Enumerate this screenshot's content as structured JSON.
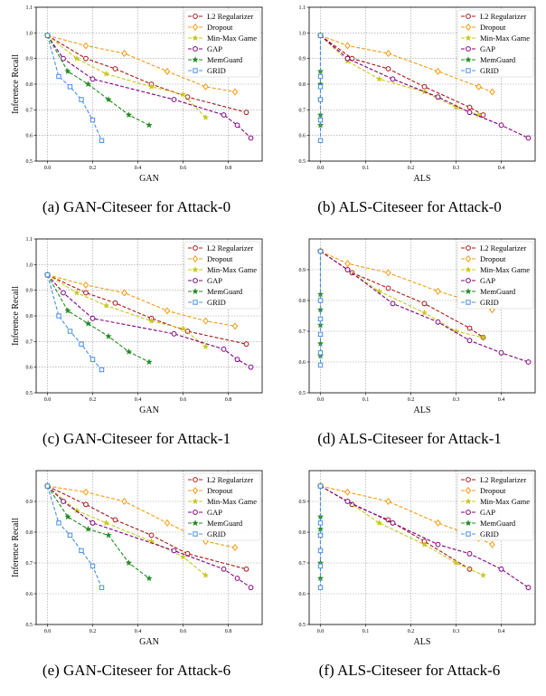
{
  "legend_labels": [
    "L2 Regularizer",
    "Dropout",
    "Min-Max Game",
    "GAP",
    "MemGuard",
    "GRID"
  ],
  "series_colors": [
    "#a81818",
    "#f39c12",
    "#c8c81e",
    "#800080",
    "#228B22",
    "#4a90e2"
  ],
  "series_markers": [
    "circle",
    "diamond",
    "star",
    "circle",
    "star",
    "square"
  ],
  "chart_data": [
    {
      "type": "line",
      "caption": "(a) GAN-Citeseer for Attack-0",
      "xlabel": "GAN",
      "ylabel": "Inference Recall",
      "xlim": [
        -0.05,
        0.95
      ],
      "ylim": [
        0.5,
        1.1
      ],
      "xticks": [
        0.0,
        0.2,
        0.4,
        0.6,
        0.8
      ],
      "yticks": [
        0.5,
        0.6,
        0.7,
        0.8,
        0.9,
        1.0,
        1.1
      ],
      "xticklabels": [
        "0.0",
        "0.2",
        "0.4",
        "0.6",
        "0.8"
      ],
      "yticklabels": [
        "0.5",
        "0.6",
        "0.7",
        "0.8",
        "0.9",
        "1.0",
        "1.1"
      ],
      "grid": true,
      "legend_position": "top-right",
      "series": [
        {
          "name": "L2 Regularizer",
          "x": [
            0.0,
            0.17,
            0.3,
            0.46,
            0.62,
            0.88
          ],
          "y": [
            0.99,
            0.9,
            0.86,
            0.8,
            0.75,
            0.69
          ]
        },
        {
          "name": "Dropout",
          "x": [
            0.0,
            0.17,
            0.34,
            0.53,
            0.7,
            0.83
          ],
          "y": [
            0.99,
            0.95,
            0.92,
            0.85,
            0.79,
            0.77
          ]
        },
        {
          "name": "Min-Max Game",
          "x": [
            0.0,
            0.13,
            0.26,
            0.46,
            0.6,
            0.7
          ],
          "y": [
            0.99,
            0.9,
            0.84,
            0.79,
            0.76,
            0.67
          ]
        },
        {
          "name": "GAP",
          "x": [
            0.0,
            0.07,
            0.2,
            0.56,
            0.78,
            0.84,
            0.9
          ],
          "y": [
            0.99,
            0.9,
            0.82,
            0.74,
            0.68,
            0.64,
            0.59
          ]
        },
        {
          "name": "MemGuard",
          "x": [
            0.0,
            0.09,
            0.18,
            0.27,
            0.36,
            0.45
          ],
          "y": [
            0.99,
            0.85,
            0.8,
            0.74,
            0.68,
            0.64
          ]
        },
        {
          "name": "GRID",
          "x": [
            0.0,
            0.05,
            0.1,
            0.15,
            0.2,
            0.24
          ],
          "y": [
            0.99,
            0.83,
            0.79,
            0.74,
            0.66,
            0.58
          ]
        }
      ]
    },
    {
      "type": "line",
      "caption": "(b) ALS-Citeseer for Attack-0",
      "xlabel": "ALS",
      "ylabel": "",
      "xlim": [
        -0.025,
        0.475
      ],
      "ylim": [
        0.5,
        1.1
      ],
      "xticks": [
        0.0,
        0.1,
        0.2,
        0.3,
        0.4
      ],
      "yticks": [
        0.5,
        0.6,
        0.7,
        0.8,
        0.9,
        1.0,
        1.1
      ],
      "xticklabels": [
        "0.0",
        "0.1",
        "0.2",
        "0.3",
        "0.4"
      ],
      "yticklabels": [
        "0.5",
        "0.6",
        "0.7",
        "0.8",
        "0.9",
        "1.0",
        "1.1"
      ],
      "grid": true,
      "legend_position": "top-right",
      "series": [
        {
          "name": "L2 Regularizer",
          "x": [
            0.0,
            0.07,
            0.15,
            0.23,
            0.33,
            0.36
          ],
          "y": [
            0.99,
            0.9,
            0.86,
            0.79,
            0.71,
            0.68
          ]
        },
        {
          "name": "Dropout",
          "x": [
            0.0,
            0.06,
            0.15,
            0.26,
            0.35,
            0.38
          ],
          "y": [
            0.99,
            0.95,
            0.92,
            0.85,
            0.79,
            0.77
          ]
        },
        {
          "name": "Min-Max Game",
          "x": [
            0.0,
            0.06,
            0.13,
            0.23,
            0.3,
            0.35
          ],
          "y": [
            0.99,
            0.89,
            0.82,
            0.77,
            0.71,
            0.68
          ]
        },
        {
          "name": "GAP",
          "x": [
            0.0,
            0.06,
            0.16,
            0.26,
            0.33,
            0.4,
            0.46
          ],
          "y": [
            0.99,
            0.9,
            0.82,
            0.75,
            0.69,
            0.64,
            0.59
          ]
        },
        {
          "name": "MemGuard",
          "x": [
            0.0,
            0.0,
            0.0,
            0.0,
            0.0,
            0.0
          ],
          "y": [
            0.99,
            0.85,
            0.8,
            0.74,
            0.68,
            0.64
          ]
        },
        {
          "name": "GRID",
          "x": [
            0.0,
            0.0,
            0.0,
            0.0,
            0.0,
            0.0
          ],
          "y": [
            0.99,
            0.83,
            0.79,
            0.74,
            0.66,
            0.58
          ]
        }
      ]
    },
    {
      "type": "line",
      "caption": "(c) GAN-Citeseer for Attack-1",
      "xlabel": "GAN",
      "ylabel": "Inference Recall",
      "xlim": [
        -0.05,
        0.95
      ],
      "ylim": [
        0.5,
        1.1
      ],
      "xticks": [
        0.0,
        0.2,
        0.4,
        0.6,
        0.8
      ],
      "yticks": [
        0.5,
        0.6,
        0.7,
        0.8,
        0.9,
        1.0,
        1.1
      ],
      "xticklabels": [
        "0.0",
        "0.2",
        "0.4",
        "0.6",
        "0.8"
      ],
      "yticklabels": [
        "0.5",
        "0.6",
        "0.7",
        "0.8",
        "0.9",
        "1.0",
        "1.1"
      ],
      "grid": true,
      "legend_position": "top-right",
      "series": [
        {
          "name": "L2 Regularizer",
          "x": [
            0.0,
            0.17,
            0.3,
            0.46,
            0.62,
            0.88
          ],
          "y": [
            0.96,
            0.89,
            0.85,
            0.79,
            0.74,
            0.69
          ]
        },
        {
          "name": "Dropout",
          "x": [
            0.0,
            0.17,
            0.34,
            0.53,
            0.7,
            0.83
          ],
          "y": [
            0.96,
            0.92,
            0.89,
            0.82,
            0.78,
            0.76
          ]
        },
        {
          "name": "Min-Max Game",
          "x": [
            0.0,
            0.13,
            0.26,
            0.46,
            0.6,
            0.7
          ],
          "y": [
            0.96,
            0.89,
            0.84,
            0.78,
            0.75,
            0.68
          ]
        },
        {
          "name": "GAP",
          "x": [
            0.0,
            0.07,
            0.2,
            0.56,
            0.78,
            0.84,
            0.9
          ],
          "y": [
            0.96,
            0.89,
            0.79,
            0.73,
            0.67,
            0.63,
            0.6
          ]
        },
        {
          "name": "MemGuard",
          "x": [
            0.0,
            0.09,
            0.18,
            0.27,
            0.36,
            0.45
          ],
          "y": [
            0.96,
            0.82,
            0.77,
            0.72,
            0.66,
            0.62
          ]
        },
        {
          "name": "GRID",
          "x": [
            0.0,
            0.05,
            0.1,
            0.15,
            0.2,
            0.24
          ],
          "y": [
            0.96,
            0.8,
            0.74,
            0.69,
            0.63,
            0.59
          ]
        }
      ]
    },
    {
      "type": "line",
      "caption": "(d) ALS-Citeseer for Attack-1",
      "xlabel": "ALS",
      "ylabel": "",
      "xlim": [
        -0.025,
        0.475
      ],
      "ylim": [
        0.5,
        1.0
      ],
      "xticks": [
        0.0,
        0.1,
        0.2,
        0.3,
        0.4
      ],
      "yticks": [
        0.5,
        0.6,
        0.7,
        0.8,
        0.9
      ],
      "xticklabels": [
        "0.0",
        "0.1",
        "0.2",
        "0.3",
        "0.4"
      ],
      "yticklabels": [
        "0.5",
        "0.6",
        "0.7",
        "0.8",
        "0.9"
      ],
      "grid": true,
      "legend_position": "top-right",
      "series": [
        {
          "name": "L2 Regularizer",
          "x": [
            0.0,
            0.07,
            0.15,
            0.23,
            0.33,
            0.36
          ],
          "y": [
            0.96,
            0.89,
            0.84,
            0.79,
            0.71,
            0.68
          ]
        },
        {
          "name": "Dropout",
          "x": [
            0.0,
            0.06,
            0.15,
            0.26,
            0.35,
            0.38
          ],
          "y": [
            0.96,
            0.92,
            0.89,
            0.83,
            0.79,
            0.77
          ]
        },
        {
          "name": "Min-Max Game",
          "x": [
            0.0,
            0.06,
            0.13,
            0.23,
            0.3,
            0.36
          ],
          "y": [
            0.96,
            0.9,
            0.83,
            0.76,
            0.7,
            0.68
          ]
        },
        {
          "name": "GAP",
          "x": [
            0.0,
            0.06,
            0.16,
            0.26,
            0.33,
            0.4,
            0.46
          ],
          "y": [
            0.96,
            0.9,
            0.79,
            0.73,
            0.67,
            0.63,
            0.6
          ]
        },
        {
          "name": "MemGuard",
          "x": [
            0.0,
            0.0,
            0.0,
            0.0,
            0.0,
            0.0
          ],
          "y": [
            0.96,
            0.82,
            0.77,
            0.72,
            0.66,
            0.62
          ]
        },
        {
          "name": "GRID",
          "x": [
            0.0,
            0.0,
            0.0,
            0.0,
            0.0,
            0.0
          ],
          "y": [
            0.96,
            0.8,
            0.74,
            0.69,
            0.63,
            0.59
          ]
        }
      ]
    },
    {
      "type": "line",
      "caption": "(e) GAN-Citeseer for Attack-6",
      "xlabel": "GAN",
      "ylabel": "Inference Recall",
      "xlim": [
        -0.05,
        0.95
      ],
      "ylim": [
        0.5,
        1.0
      ],
      "xticks": [
        0.0,
        0.2,
        0.4,
        0.6,
        0.8
      ],
      "yticks": [
        0.5,
        0.6,
        0.7,
        0.8,
        0.9
      ],
      "xticklabels": [
        "0.0",
        "0.2",
        "0.4",
        "0.6",
        "0.8"
      ],
      "yticklabels": [
        "0.5",
        "0.6",
        "0.7",
        "0.8",
        "0.9"
      ],
      "grid": true,
      "legend_position": "top-right",
      "series": [
        {
          "name": "L2 Regularizer",
          "x": [
            0.0,
            0.17,
            0.3,
            0.46,
            0.62,
            0.88
          ],
          "y": [
            0.95,
            0.89,
            0.84,
            0.79,
            0.73,
            0.68
          ]
        },
        {
          "name": "Dropout",
          "x": [
            0.0,
            0.17,
            0.34,
            0.53,
            0.7,
            0.83
          ],
          "y": [
            0.95,
            0.93,
            0.9,
            0.83,
            0.77,
            0.75
          ]
        },
        {
          "name": "Min-Max Game",
          "x": [
            0.0,
            0.13,
            0.26,
            0.46,
            0.6,
            0.7
          ],
          "y": [
            0.95,
            0.87,
            0.83,
            0.77,
            0.72,
            0.66
          ]
        },
        {
          "name": "GAP",
          "x": [
            0.0,
            0.07,
            0.2,
            0.56,
            0.78,
            0.84,
            0.9
          ],
          "y": [
            0.95,
            0.9,
            0.83,
            0.74,
            0.68,
            0.65,
            0.62
          ]
        },
        {
          "name": "MemGuard",
          "x": [
            0.0,
            0.09,
            0.18,
            0.27,
            0.36,
            0.45
          ],
          "y": [
            0.95,
            0.85,
            0.81,
            0.79,
            0.7,
            0.65
          ]
        },
        {
          "name": "GRID",
          "x": [
            0.0,
            0.05,
            0.1,
            0.15,
            0.2,
            0.24
          ],
          "y": [
            0.95,
            0.83,
            0.79,
            0.74,
            0.69,
            0.62
          ]
        }
      ]
    },
    {
      "type": "line",
      "caption": "(f) ALS-Citeseer for Attack-6",
      "xlabel": "ALS",
      "ylabel": "",
      "xlim": [
        -0.025,
        0.475
      ],
      "ylim": [
        0.5,
        1.0
      ],
      "xticks": [
        0.0,
        0.1,
        0.2,
        0.3,
        0.4
      ],
      "yticks": [
        0.5,
        0.6,
        0.7,
        0.8,
        0.9
      ],
      "xticklabels": [
        "0.0",
        "0.1",
        "0.2",
        "0.3",
        "0.4"
      ],
      "yticklabels": [
        "0.5",
        "0.6",
        "0.7",
        "0.8",
        "0.9"
      ],
      "grid": true,
      "legend_position": "top-right",
      "series": [
        {
          "name": "L2 Regularizer",
          "x": [
            0.0,
            0.07,
            0.15,
            0.23,
            0.33
          ],
          "y": [
            0.95,
            0.89,
            0.84,
            0.77,
            0.68
          ]
        },
        {
          "name": "Dropout",
          "x": [
            0.0,
            0.06,
            0.15,
            0.26,
            0.35,
            0.38
          ],
          "y": [
            0.95,
            0.93,
            0.9,
            0.83,
            0.78,
            0.76
          ]
        },
        {
          "name": "Min-Max Game",
          "x": [
            0.0,
            0.06,
            0.13,
            0.23,
            0.3,
            0.36
          ],
          "y": [
            0.95,
            0.9,
            0.83,
            0.76,
            0.7,
            0.66
          ]
        },
        {
          "name": "GAP",
          "x": [
            0.0,
            0.06,
            0.16,
            0.26,
            0.33,
            0.4,
            0.46
          ],
          "y": [
            0.95,
            0.9,
            0.83,
            0.76,
            0.73,
            0.68,
            0.62
          ]
        },
        {
          "name": "MemGuard",
          "x": [
            0.0,
            0.0,
            0.0,
            0.0,
            0.0,
            0.0
          ],
          "y": [
            0.95,
            0.85,
            0.81,
            0.79,
            0.7,
            0.65
          ]
        },
        {
          "name": "GRID",
          "x": [
            0.0,
            0.0,
            0.0,
            0.0,
            0.0,
            0.0
          ],
          "y": [
            0.95,
            0.83,
            0.79,
            0.74,
            0.69,
            0.62
          ]
        }
      ]
    }
  ]
}
